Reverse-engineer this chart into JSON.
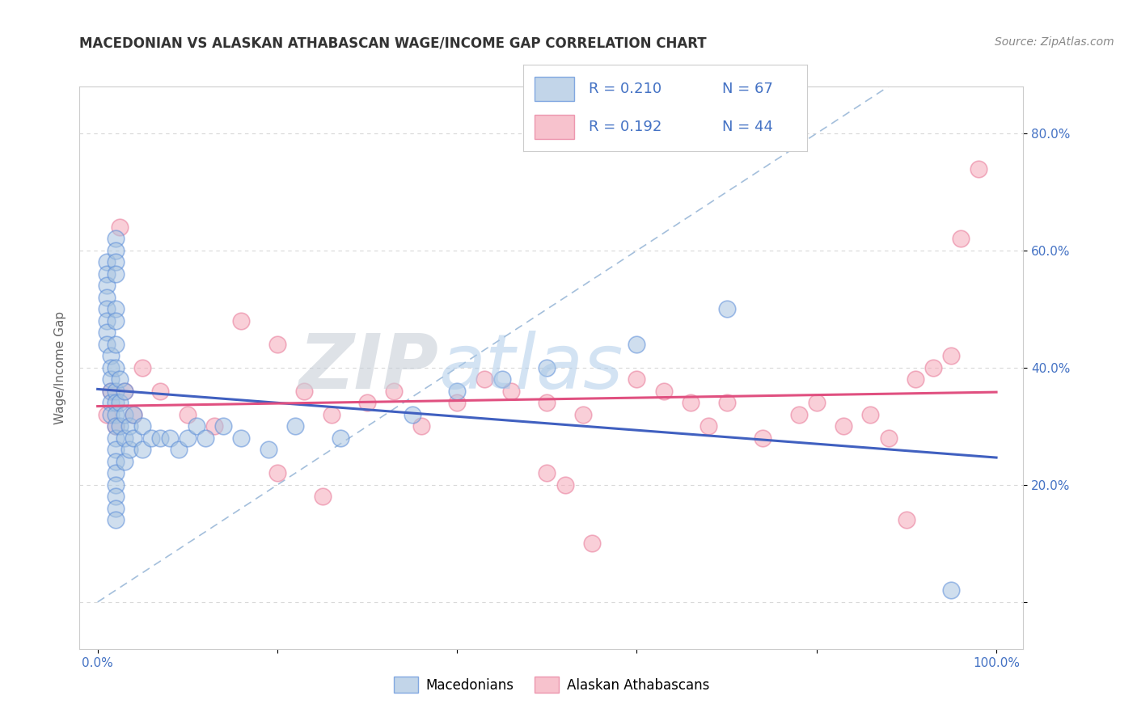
{
  "title": "MACEDONIAN VS ALASKAN ATHABASCAN WAGE/INCOME GAP CORRELATION CHART",
  "source": "Source: ZipAtlas.com",
  "ylabel": "Wage/Income Gap",
  "blue_fill": "#a8c4e0",
  "blue_edge": "#5b8dd9",
  "pink_fill": "#f5a8b8",
  "pink_edge": "#e87898",
  "blue_line": "#4060c0",
  "pink_line": "#e05080",
  "diag_color": "#9ab8d8",
  "bg_color": "#ffffff",
  "grid_color": "#d8d8d8",
  "watermark_zip": "ZIP",
  "watermark_atlas": "atlas",
  "watermark_zip_color": "#c8cfd8",
  "watermark_atlas_color": "#a8c8e8",
  "tick_color": "#4472c4",
  "label_color": "#666666",
  "macedonian_x": [
    0.01,
    0.01,
    0.01,
    0.01,
    0.01,
    0.01,
    0.01,
    0.01,
    0.015,
    0.015,
    0.015,
    0.015,
    0.015,
    0.015,
    0.02,
    0.02,
    0.02,
    0.02,
    0.02,
    0.02,
    0.02,
    0.02,
    0.02,
    0.02,
    0.02,
    0.02,
    0.02,
    0.02,
    0.02,
    0.02,
    0.02,
    0.02,
    0.02,
    0.02,
    0.025,
    0.025,
    0.025,
    0.03,
    0.03,
    0.03,
    0.03,
    0.035,
    0.035,
    0.04,
    0.04,
    0.05,
    0.05,
    0.06,
    0.07,
    0.08,
    0.09,
    0.1,
    0.11,
    0.12,
    0.14,
    0.16,
    0.19,
    0.22,
    0.27,
    0.35,
    0.4,
    0.45,
    0.5,
    0.6,
    0.7,
    0.95
  ],
  "macedonian_y": [
    0.58,
    0.56,
    0.54,
    0.52,
    0.5,
    0.48,
    0.46,
    0.44,
    0.42,
    0.4,
    0.38,
    0.36,
    0.34,
    0.32,
    0.62,
    0.6,
    0.58,
    0.56,
    0.5,
    0.48,
    0.44,
    0.4,
    0.36,
    0.34,
    0.32,
    0.3,
    0.28,
    0.26,
    0.24,
    0.22,
    0.2,
    0.18,
    0.16,
    0.14,
    0.38,
    0.34,
    0.3,
    0.36,
    0.32,
    0.28,
    0.24,
    0.3,
    0.26,
    0.32,
    0.28,
    0.3,
    0.26,
    0.28,
    0.28,
    0.28,
    0.26,
    0.28,
    0.3,
    0.28,
    0.3,
    0.28,
    0.26,
    0.3,
    0.28,
    0.32,
    0.36,
    0.38,
    0.4,
    0.44,
    0.5,
    0.02
  ],
  "alaskan_x": [
    0.01,
    0.015,
    0.02,
    0.025,
    0.03,
    0.04,
    0.05,
    0.07,
    0.1,
    0.13,
    0.16,
    0.2,
    0.23,
    0.26,
    0.3,
    0.33,
    0.36,
    0.4,
    0.43,
    0.46,
    0.5,
    0.54,
    0.6,
    0.63,
    0.66,
    0.68,
    0.7,
    0.74,
    0.78,
    0.8,
    0.83,
    0.86,
    0.88,
    0.9,
    0.91,
    0.93,
    0.95,
    0.96,
    0.98,
    0.2,
    0.25,
    0.5,
    0.52,
    0.55
  ],
  "alaskan_y": [
    0.32,
    0.36,
    0.3,
    0.64,
    0.36,
    0.32,
    0.4,
    0.36,
    0.32,
    0.3,
    0.48,
    0.44,
    0.36,
    0.32,
    0.34,
    0.36,
    0.3,
    0.34,
    0.38,
    0.36,
    0.34,
    0.32,
    0.38,
    0.36,
    0.34,
    0.3,
    0.34,
    0.28,
    0.32,
    0.34,
    0.3,
    0.32,
    0.28,
    0.14,
    0.38,
    0.4,
    0.42,
    0.62,
    0.74,
    0.22,
    0.18,
    0.22,
    0.2,
    0.1
  ],
  "xlim": [
    -0.02,
    1.03
  ],
  "ylim": [
    -0.08,
    0.88
  ],
  "xticks": [
    0.0,
    0.2,
    0.4,
    0.6,
    0.8,
    1.0
  ],
  "yticks": [
    0.0,
    0.2,
    0.4,
    0.6,
    0.8
  ],
  "figsize": [
    14.06,
    8.92
  ],
  "dpi": 100
}
